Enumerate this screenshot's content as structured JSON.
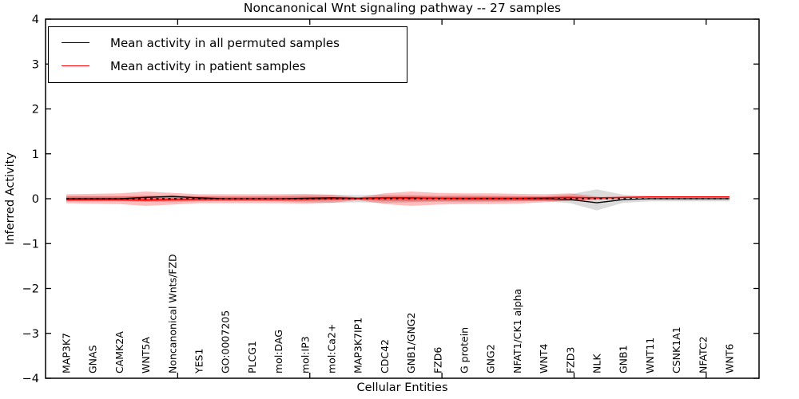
{
  "title": "Noncanonical Wnt signaling pathway -- 27 samples",
  "legend": {
    "items": [
      {
        "label": "Mean activity in all permuted samples",
        "color": "#000000"
      },
      {
        "label": "Mean activity in patient samples",
        "color": "#ff0000"
      }
    ]
  },
  "chart_data": {
    "type": "line",
    "title": "Noncanonical Wnt signaling pathway -- 27 samples",
    "xlabel": "Cellular Entities",
    "ylabel": "Inferred Activity",
    "ylim": [
      -4,
      4
    ],
    "yticks": [
      4,
      3,
      2,
      1,
      0,
      -1,
      -2,
      -3,
      -4
    ],
    "xlim": [
      0,
      27
    ],
    "xticks_major": [
      5,
      10,
      15,
      20,
      25
    ],
    "grid": false,
    "legend_position": "upper left",
    "entities": [
      "MAP3K7",
      "GNAS",
      "CAMK2A",
      "WNT5A",
      "Noncanonical Wnts/FZD",
      "YES1",
      "GO:0007205",
      "PLCG1",
      "mol:DAG",
      "mol:IP3",
      "mol:Ca2+",
      "MAP3K7IP1",
      "CDC42",
      "GNB1/GNG2",
      "FZD6",
      "G protein",
      "GNG2",
      "NFAT1/CK1 alpha",
      "WNT4",
      "FZD3",
      "NLK",
      "GNB1",
      "WNT11",
      "CSNK1A1",
      "NFATC2",
      "WNT6"
    ],
    "series": [
      {
        "name": "Mean activity in all permuted samples",
        "color": "#000000",
        "style": "solid",
        "width": 1.3,
        "values": [
          0,
          0,
          0,
          0.03,
          0.05,
          0.02,
          0,
          0,
          0,
          0.01,
          0.02,
          0.01,
          0.02,
          0.02,
          0.01,
          0,
          0,
          0,
          0,
          -0.02,
          -0.09,
          -0.02,
          0,
          0,
          0,
          0
        ]
      },
      {
        "name": "Mean activity in patient samples",
        "color": "#ff0000",
        "style": "solid",
        "width": 1.6,
        "values": [
          -0.02,
          -0.02,
          -0.02,
          -0.03,
          -0.02,
          -0.01,
          -0.01,
          -0.01,
          -0.01,
          -0.01,
          0,
          0,
          0.01,
          0.01,
          0.01,
          0.01,
          0.01,
          0.01,
          0.02,
          0.03,
          0.02,
          0.03,
          0.04,
          0.04,
          0.04,
          0.04
        ]
      },
      {
        "name": "zero-reference",
        "color": "#000000",
        "style": "dashed",
        "width": 1.4,
        "values": [
          0,
          0,
          0,
          0,
          0,
          0,
          0,
          0,
          0,
          0,
          0,
          0,
          0,
          0,
          0,
          0,
          0,
          0,
          0,
          0,
          0,
          0,
          0,
          0,
          0,
          0
        ]
      }
    ],
    "bands": [
      {
        "name": "permuted-samples-band",
        "color": "rgba(125,125,125,0.28)",
        "range": [
          0,
          25
        ],
        "upper": [
          0.06,
          0.06,
          0.06,
          0.07,
          0.08,
          0.06,
          0.05,
          0.05,
          0.06,
          0.08,
          0.09,
          0.08,
          0.09,
          0.08,
          0.07,
          0.08,
          0.07,
          0.06,
          0.05,
          0.1,
          0.21,
          0.09,
          0.06,
          0.06,
          0.06,
          0.06
        ],
        "lower": [
          -0.06,
          -0.06,
          -0.06,
          -0.07,
          -0.08,
          -0.06,
          -0.05,
          -0.05,
          -0.06,
          -0.08,
          -0.09,
          -0.08,
          -0.09,
          -0.08,
          -0.07,
          -0.08,
          -0.07,
          -0.06,
          -0.05,
          -0.1,
          -0.26,
          -0.09,
          -0.06,
          -0.06,
          -0.06,
          -0.06
        ]
      },
      {
        "name": "patient-samples-band-outer",
        "color": "rgba(255,0,0,0.26)",
        "range": [
          0,
          21
        ],
        "upper": [
          0.1,
          0.11,
          0.12,
          0.16,
          0.13,
          0.1,
          0.1,
          0.1,
          0.1,
          0.11,
          0.09,
          0.03,
          0.12,
          0.16,
          0.13,
          0.12,
          0.12,
          0.11,
          0.1,
          0.12,
          0.05,
          0
        ],
        "lower": [
          -0.1,
          -0.11,
          -0.12,
          -0.16,
          -0.13,
          -0.1,
          -0.1,
          -0.1,
          -0.1,
          -0.11,
          -0.09,
          -0.03,
          -0.12,
          -0.16,
          -0.13,
          -0.12,
          -0.12,
          -0.11,
          -0.08,
          -0.04,
          -0.02,
          0
        ]
      },
      {
        "name": "patient-samples-band-inner",
        "color": "rgba(255,0,0,0.30)",
        "range": [
          0,
          21
        ],
        "upper": [
          0.05,
          0.05,
          0.05,
          0.06,
          0.05,
          0.05,
          0.05,
          0.05,
          0.05,
          0.05,
          0.04,
          0.02,
          0.05,
          0.06,
          0.05,
          0.05,
          0.05,
          0.05,
          0.05,
          0.05,
          0.02,
          0
        ],
        "lower": [
          -0.05,
          -0.05,
          -0.05,
          -0.06,
          -0.05,
          -0.05,
          -0.05,
          -0.05,
          -0.05,
          -0.05,
          -0.04,
          -0.02,
          -0.05,
          -0.06,
          -0.05,
          -0.05,
          -0.05,
          -0.05,
          -0.05,
          -0.05,
          -0.02,
          0
        ]
      }
    ]
  }
}
